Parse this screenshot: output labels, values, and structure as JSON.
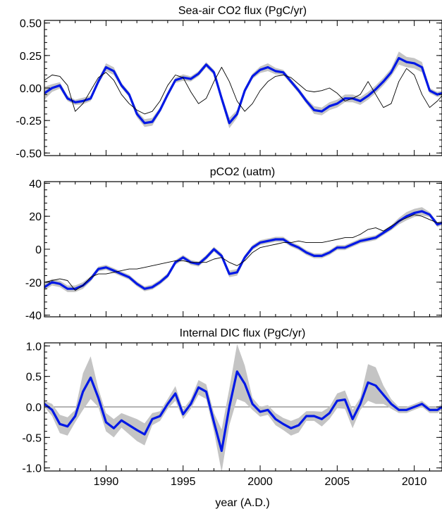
{
  "figure": {
    "xlabel": "year (A.D.)"
  },
  "colors": {
    "primary": "#0018e6",
    "secondary": "#000000",
    "band": "#c4c4c4",
    "zero_line": "#888888"
  },
  "chart_data": [
    {
      "type": "line",
      "title": "Sea-air CO2 flux (PgC/yr)",
      "xlim": [
        1986,
        2011.8
      ],
      "ylim": [
        -0.52,
        0.52
      ],
      "yticks": [
        -0.5,
        -0.25,
        0.0,
        0.25,
        0.5
      ],
      "ytick_labels": [
        "-0.50",
        "-0.25",
        "0.00",
        "0.25",
        "0.50"
      ],
      "xticks": [
        1990,
        1995,
        2000,
        2005,
        2010
      ],
      "xtick_labels": [
        "",
        "",
        "",
        "",
        ""
      ],
      "series": [
        {
          "style": "thick-blue-with-grey-band",
          "x": [
            1986.0,
            1986.5,
            1987.0,
            1987.5,
            1988.0,
            1988.5,
            1989.0,
            1989.5,
            1990.0,
            1990.5,
            1991.0,
            1991.5,
            1992.0,
            1992.5,
            1993.0,
            1993.5,
            1994.0,
            1994.5,
            1995.0,
            1995.5,
            1996.0,
            1996.5,
            1997.0,
            1997.5,
            1998.0,
            1998.5,
            1999.0,
            1999.5,
            2000.0,
            2000.5,
            2001.0,
            2001.5,
            2002.0,
            2002.5,
            2003.0,
            2003.5,
            2004.0,
            2004.5,
            2005.0,
            2005.5,
            2006.0,
            2006.5,
            2007.0,
            2007.5,
            2008.0,
            2008.5,
            2009.0,
            2009.5,
            2010.0,
            2010.5,
            2011.0,
            2011.5,
            2011.8
          ],
          "y": [
            -0.04,
            0.0,
            0.02,
            -0.08,
            -0.11,
            -0.1,
            -0.08,
            0.05,
            0.16,
            0.13,
            0.02,
            -0.05,
            -0.2,
            -0.27,
            -0.26,
            -0.17,
            -0.05,
            0.06,
            0.08,
            0.07,
            0.11,
            0.18,
            0.12,
            -0.08,
            -0.27,
            -0.2,
            -0.02,
            0.09,
            0.14,
            0.16,
            0.13,
            0.12,
            0.05,
            -0.02,
            -0.1,
            -0.17,
            -0.18,
            -0.14,
            -0.12,
            -0.08,
            -0.08,
            -0.1,
            -0.06,
            -0.01,
            0.05,
            0.12,
            0.23,
            0.2,
            0.19,
            0.16,
            -0.02,
            -0.05,
            -0.04
          ],
          "band": [
            0.05,
            0.03,
            0.025,
            0.02,
            0.02,
            0.025,
            0.02,
            0.02,
            0.03,
            0.03,
            0.02,
            0.02,
            0.025,
            0.03,
            0.03,
            0.02,
            0.02,
            0.02,
            0.025,
            0.02,
            0.02,
            0.02,
            0.02,
            0.03,
            0.04,
            0.03,
            0.02,
            0.02,
            0.025,
            0.03,
            0.025,
            0.02,
            0.02,
            0.02,
            0.02,
            0.03,
            0.03,
            0.03,
            0.03,
            0.03,
            0.03,
            0.03,
            0.03,
            0.03,
            0.03,
            0.03,
            0.05,
            0.04,
            0.04,
            0.04,
            0.02,
            0.02,
            0.02
          ]
        },
        {
          "style": "thin-black",
          "x": [
            1986.0,
            1986.5,
            1987.0,
            1987.5,
            1988.0,
            1988.5,
            1989.0,
            1989.5,
            1990.0,
            1990.5,
            1991.0,
            1991.5,
            1992.0,
            1992.5,
            1993.0,
            1993.5,
            1994.0,
            1994.5,
            1995.0,
            1995.5,
            1996.0,
            1996.5,
            1997.0,
            1997.5,
            1998.0,
            1998.5,
            1999.0,
            1999.5,
            2000.0,
            2000.5,
            2001.0,
            2001.5,
            2002.0,
            2002.5,
            2003.0,
            2003.5,
            2004.0,
            2004.5,
            2005.0,
            2005.5,
            2006.0,
            2006.5,
            2007.0,
            2007.5,
            2008.0,
            2008.5,
            2009.0,
            2009.5,
            2010.0,
            2010.5,
            2011.0,
            2011.5,
            2011.8
          ],
          "y": [
            0.06,
            0.1,
            0.09,
            0.02,
            -0.18,
            -0.12,
            -0.02,
            0.08,
            0.12,
            0.06,
            -0.05,
            -0.12,
            -0.17,
            -0.2,
            -0.18,
            -0.1,
            0.02,
            0.1,
            0.08,
            -0.03,
            -0.12,
            -0.08,
            0.05,
            0.16,
            0.05,
            -0.1,
            -0.18,
            -0.12,
            -0.02,
            0.05,
            0.09,
            0.1,
            0.08,
            0.03,
            -0.02,
            -0.03,
            -0.02,
            0.0,
            -0.04,
            -0.1,
            -0.08,
            -0.05,
            0.05,
            -0.05,
            -0.15,
            -0.12,
            0.05,
            0.15,
            0.1,
            -0.05,
            -0.15,
            -0.1,
            -0.06
          ]
        }
      ]
    },
    {
      "type": "line",
      "title": "pCO2 (uatm)",
      "xlim": [
        1986,
        2011.8
      ],
      "ylim": [
        -41,
        41
      ],
      "yticks": [
        -40,
        -20,
        0,
        20,
        40
      ],
      "ytick_labels": [
        "-40",
        "-20",
        "0",
        "20",
        "40"
      ],
      "xticks": [
        1990,
        1995,
        2000,
        2005,
        2010
      ],
      "xtick_labels": [
        "",
        "",
        "",
        "",
        ""
      ],
      "series": [
        {
          "style": "thick-blue-with-grey-band",
          "x": [
            1986.0,
            1986.5,
            1987.0,
            1987.5,
            1988.0,
            1988.5,
            1989.0,
            1989.5,
            1990.0,
            1990.5,
            1991.0,
            1991.5,
            1992.0,
            1992.5,
            1993.0,
            1993.5,
            1994.0,
            1994.5,
            1995.0,
            1995.5,
            1996.0,
            1996.5,
            1997.0,
            1997.5,
            1998.0,
            1998.5,
            1999.0,
            1999.5,
            2000.0,
            2000.5,
            2001.0,
            2001.5,
            2002.0,
            2002.5,
            2003.0,
            2003.5,
            2004.0,
            2004.5,
            2005.0,
            2005.5,
            2006.0,
            2006.5,
            2007.0,
            2007.5,
            2008.0,
            2008.5,
            2009.0,
            2009.5,
            2010.0,
            2010.5,
            2011.0,
            2011.5,
            2011.8
          ],
          "y": [
            -23,
            -20,
            -21,
            -24,
            -24,
            -22,
            -18,
            -12,
            -11,
            -13,
            -15,
            -17,
            -21,
            -24,
            -23,
            -20,
            -16,
            -8,
            -5,
            -8,
            -9,
            -5,
            0,
            -4,
            -15,
            -14,
            -5,
            1,
            4,
            5,
            6,
            6,
            3,
            1,
            -2,
            -4,
            -4,
            -2,
            1,
            1,
            3,
            5,
            6,
            7,
            10,
            13,
            17,
            20,
            22,
            23,
            21,
            15,
            16
          ],
          "band": [
            2,
            2,
            2,
            2,
            2,
            2,
            1.5,
            1.5,
            1.5,
            1.5,
            1.5,
            1.5,
            1.5,
            1.5,
            1.5,
            1.5,
            1.5,
            1.5,
            1.5,
            1.5,
            1.5,
            1.5,
            1.5,
            1.5,
            2,
            2,
            1.5,
            1.5,
            1.5,
            1.5,
            1.5,
            1.5,
            1.5,
            1.5,
            1.5,
            1.5,
            1.5,
            1.5,
            1.5,
            1.5,
            1.5,
            1.5,
            1.5,
            1.5,
            1.5,
            1.5,
            2,
            2.5,
            2.5,
            2.5,
            1.5,
            1.5,
            1.5
          ]
        },
        {
          "style": "thin-black",
          "x": [
            1986.0,
            1986.5,
            1987.0,
            1987.5,
            1988.0,
            1988.5,
            1989.0,
            1989.5,
            1990.0,
            1990.5,
            1991.0,
            1991.5,
            1992.0,
            1992.5,
            1993.0,
            1993.5,
            1994.0,
            1994.5,
            1995.0,
            1995.5,
            1996.0,
            1996.5,
            1997.0,
            1997.5,
            1998.0,
            1998.5,
            1999.0,
            1999.5,
            2000.0,
            2000.5,
            2001.0,
            2001.5,
            2002.0,
            2002.5,
            2003.0,
            2003.5,
            2004.0,
            2004.5,
            2005.0,
            2005.5,
            2006.0,
            2006.5,
            2007.0,
            2007.5,
            2008.0,
            2008.5,
            2009.0,
            2009.5,
            2010.0,
            2010.5,
            2011.0,
            2011.5,
            2011.8
          ],
          "y": [
            -20,
            -19,
            -18,
            -19,
            -25,
            -22,
            -17,
            -15,
            -15,
            -14,
            -13,
            -12,
            -12,
            -11,
            -10,
            -9,
            -8,
            -7,
            -7,
            -8,
            -8,
            -8,
            -6,
            -5,
            -8,
            -10,
            -7,
            -2,
            1,
            2,
            3,
            4,
            4,
            5,
            4,
            4,
            4,
            5,
            6,
            7,
            7,
            9,
            12,
            13,
            11,
            14,
            17,
            19,
            21,
            20,
            18,
            16,
            16
          ]
        }
      ]
    },
    {
      "type": "line",
      "title": "Internal DIC flux (PgC/yr)",
      "xlabel": "year (A.D.)",
      "xlim": [
        1986,
        2011.8
      ],
      "ylim": [
        -1.05,
        1.05
      ],
      "yticks": [
        -1.0,
        -0.5,
        0.0,
        0.5,
        1.0
      ],
      "ytick_labels": [
        "-1.0",
        "-0.5",
        "0.0",
        "0.5",
        "1.0"
      ],
      "xticks": [
        1990,
        1995,
        2000,
        2005,
        2010
      ],
      "xtick_labels": [
        "1990",
        "1995",
        "2000",
        "2005",
        "2010"
      ],
      "zero_line": true,
      "series": [
        {
          "style": "thick-blue-with-grey-band",
          "x": [
            1986.0,
            1986.5,
            1987.0,
            1987.5,
            1988.0,
            1988.5,
            1989.0,
            1989.5,
            1990.0,
            1990.5,
            1991.0,
            1991.5,
            1992.0,
            1992.5,
            1993.0,
            1993.5,
            1994.0,
            1994.5,
            1995.0,
            1995.5,
            1996.0,
            1996.5,
            1997.0,
            1997.5,
            1998.0,
            1998.5,
            1999.0,
            1999.5,
            2000.0,
            2000.5,
            2001.0,
            2001.5,
            2002.0,
            2002.5,
            2003.0,
            2003.5,
            2004.0,
            2004.5,
            2005.0,
            2005.5,
            2006.0,
            2006.5,
            2007.0,
            2007.5,
            2008.0,
            2008.5,
            2009.0,
            2009.5,
            2010.0,
            2010.5,
            2011.0,
            2011.5,
            2011.8
          ],
          "y": [
            0.05,
            -0.05,
            -0.28,
            -0.32,
            -0.15,
            0.25,
            0.48,
            0.15,
            -0.25,
            -0.35,
            -0.22,
            -0.3,
            -0.38,
            -0.45,
            -0.2,
            -0.15,
            0.05,
            0.22,
            -0.12,
            0.05,
            0.32,
            0.25,
            -0.25,
            -0.72,
            0.0,
            0.58,
            0.38,
            0.05,
            -0.08,
            -0.05,
            -0.2,
            -0.28,
            -0.35,
            -0.3,
            -0.15,
            -0.15,
            -0.2,
            -0.1,
            0.1,
            0.12,
            -0.2,
            0.05,
            0.4,
            0.35,
            0.2,
            0.05,
            -0.05,
            -0.05,
            0.0,
            0.05,
            -0.05,
            -0.05,
            0.0
          ],
          "band": [
            0.05,
            0.1,
            0.15,
            0.15,
            0.1,
            0.3,
            0.35,
            0.15,
            0.15,
            0.15,
            0.12,
            0.15,
            0.18,
            0.18,
            0.1,
            0.08,
            0.08,
            0.12,
            0.08,
            0.08,
            0.12,
            0.12,
            0.15,
            0.35,
            0.3,
            0.45,
            0.3,
            0.1,
            0.08,
            0.08,
            0.1,
            0.1,
            0.12,
            0.12,
            0.08,
            0.08,
            0.12,
            0.1,
            0.12,
            0.15,
            0.15,
            0.1,
            0.3,
            0.3,
            0.15,
            0.08,
            0.05,
            0.05,
            0.05,
            0.05,
            0.05,
            0.05,
            0.05
          ]
        }
      ]
    }
  ]
}
